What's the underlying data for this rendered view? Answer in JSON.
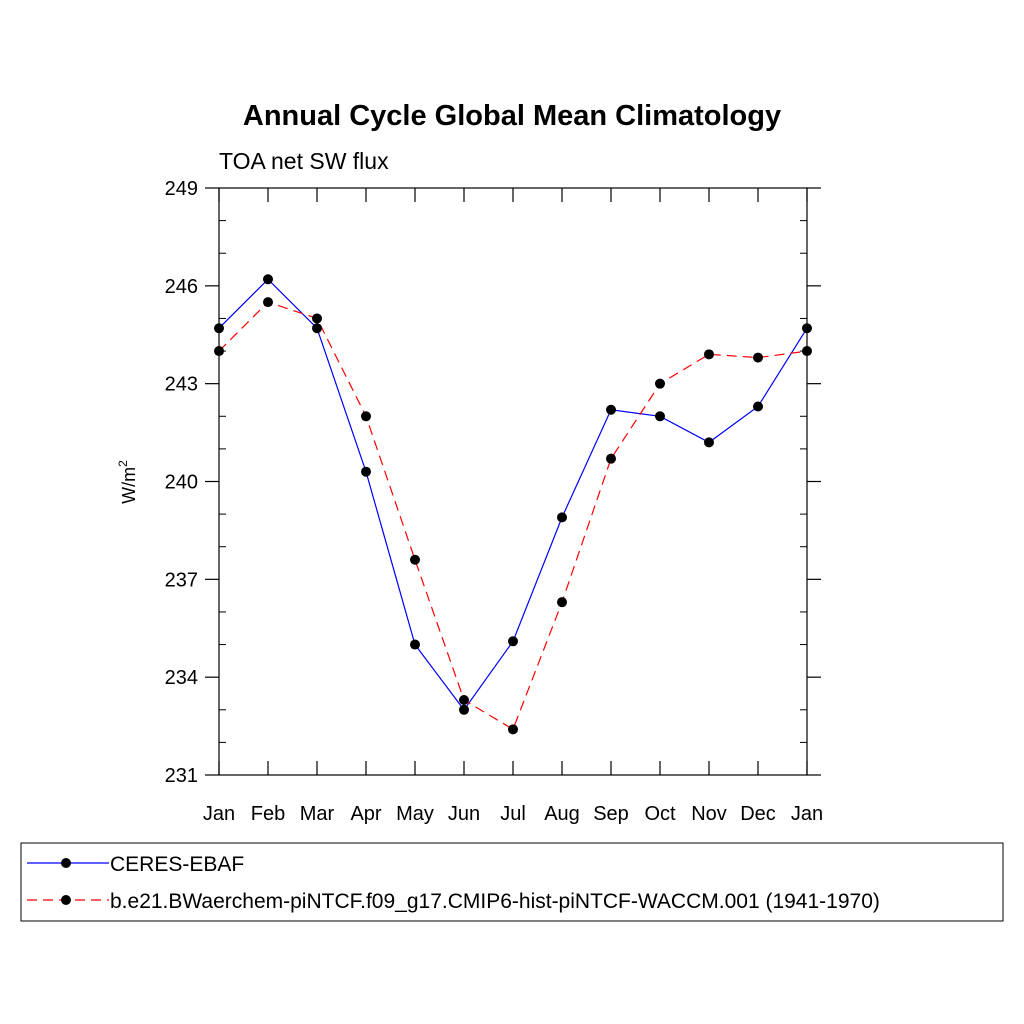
{
  "chart_data": {
    "type": "line",
    "title": "Annual Cycle Global Mean Climatology",
    "subtitle": "TOA net SW flux",
    "ylabel": "W/m",
    "ylabel_superscript": "2",
    "xlabel": "",
    "categories": [
      "Jan",
      "Feb",
      "Mar",
      "Apr",
      "May",
      "Jun",
      "Jul",
      "Aug",
      "Sep",
      "Oct",
      "Nov",
      "Dec",
      "Jan"
    ],
    "ylim": [
      231,
      249
    ],
    "yticks": [
      "231",
      "234",
      "237",
      "240",
      "243",
      "246",
      "249"
    ],
    "grid": false,
    "legend_position": "bottom",
    "series": [
      {
        "name": "CERES-EBAF",
        "color": "#0000ff",
        "dash": "solid",
        "values": [
          244.7,
          246.2,
          244.7,
          240.3,
          235.0,
          233.0,
          235.1,
          238.9,
          242.2,
          242.0,
          241.2,
          242.3,
          244.7
        ]
      },
      {
        "name": "b.e21.BWaerchem-piNTCF.f09_g17.CMIP6-hist-piNTCF-WACCM.001 (1941-1970)",
        "color": "#ff0000",
        "dash": "dashed",
        "values": [
          244.0,
          245.5,
          245.0,
          242.0,
          237.6,
          233.3,
          232.4,
          236.3,
          240.7,
          243.0,
          243.9,
          243.8,
          244.0
        ]
      }
    ]
  }
}
